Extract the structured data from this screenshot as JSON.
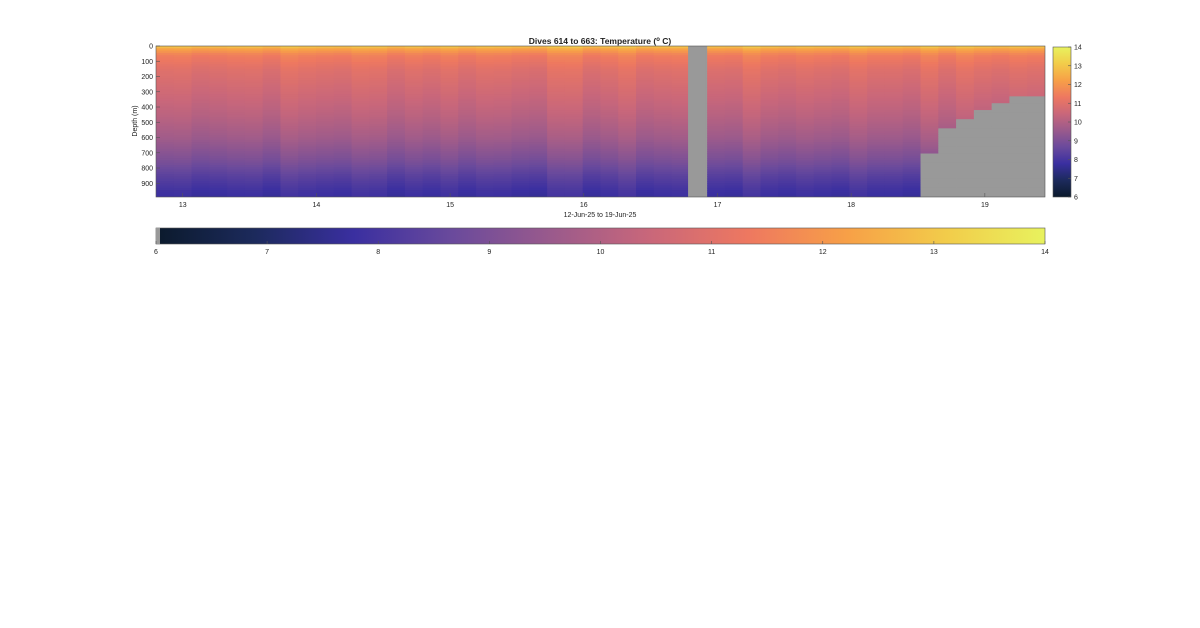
{
  "chart_data": {
    "type": "heatmap",
    "title": "Dives 614 to 663: Temperature (",
    "title_degree": "o",
    "title_unit": " C)",
    "xlabel": "12-Jun-25 to 19-Jun-25",
    "ylabel": "Depth (m)",
    "x_range": [
      12.8,
      19.45
    ],
    "x_ticks": [
      "13",
      "14",
      "15",
      "16",
      "17",
      "18",
      "19"
    ],
    "y_range": [
      0,
      990
    ],
    "y_ticks": [
      "0",
      "100",
      "200",
      "300",
      "400",
      "500",
      "600",
      "700",
      "800",
      "900"
    ],
    "y_reversed": true,
    "data_gap": [
      16.78,
      16.91
    ],
    "missing_depth_from": [
      {
        "x_start": 18.52,
        "x_end": 18.65,
        "depth": 700
      },
      {
        "x_start": 18.65,
        "x_end": 18.78,
        "depth": 540
      },
      {
        "x_start": 18.78,
        "x_end": 18.91,
        "depth": 480
      },
      {
        "x_start": 18.91,
        "x_end": 19.04,
        "depth": 420
      },
      {
        "x_start": 19.04,
        "x_end": 19.17,
        "depth": 370
      },
      {
        "x_start": 19.17,
        "x_end": 19.45,
        "depth": 330
      }
    ],
    "temperature_profile": {
      "depths": [
        0,
        20,
        60,
        150,
        300,
        450,
        600,
        750,
        850,
        950,
        990
      ],
      "values": [
        13.1,
        12.3,
        11.5,
        11.0,
        10.6,
        10.2,
        9.7,
        9.0,
        8.4,
        7.9,
        7.8
      ]
    },
    "colorbar_range": [
      6,
      14
    ],
    "colorbar_ticks": [
      "6",
      "7",
      "8",
      "9",
      "10",
      "11",
      "12",
      "13",
      "14"
    ],
    "colormap_stops": [
      "#0b1a2c",
      "#1c2a5c",
      "#3a2fa0",
      "#6a4a9c",
      "#9a5a8c",
      "#c9677a",
      "#ee7860",
      "#f7a047",
      "#f2cc4a",
      "#e8f25e"
    ],
    "missing_color": "#999999"
  }
}
